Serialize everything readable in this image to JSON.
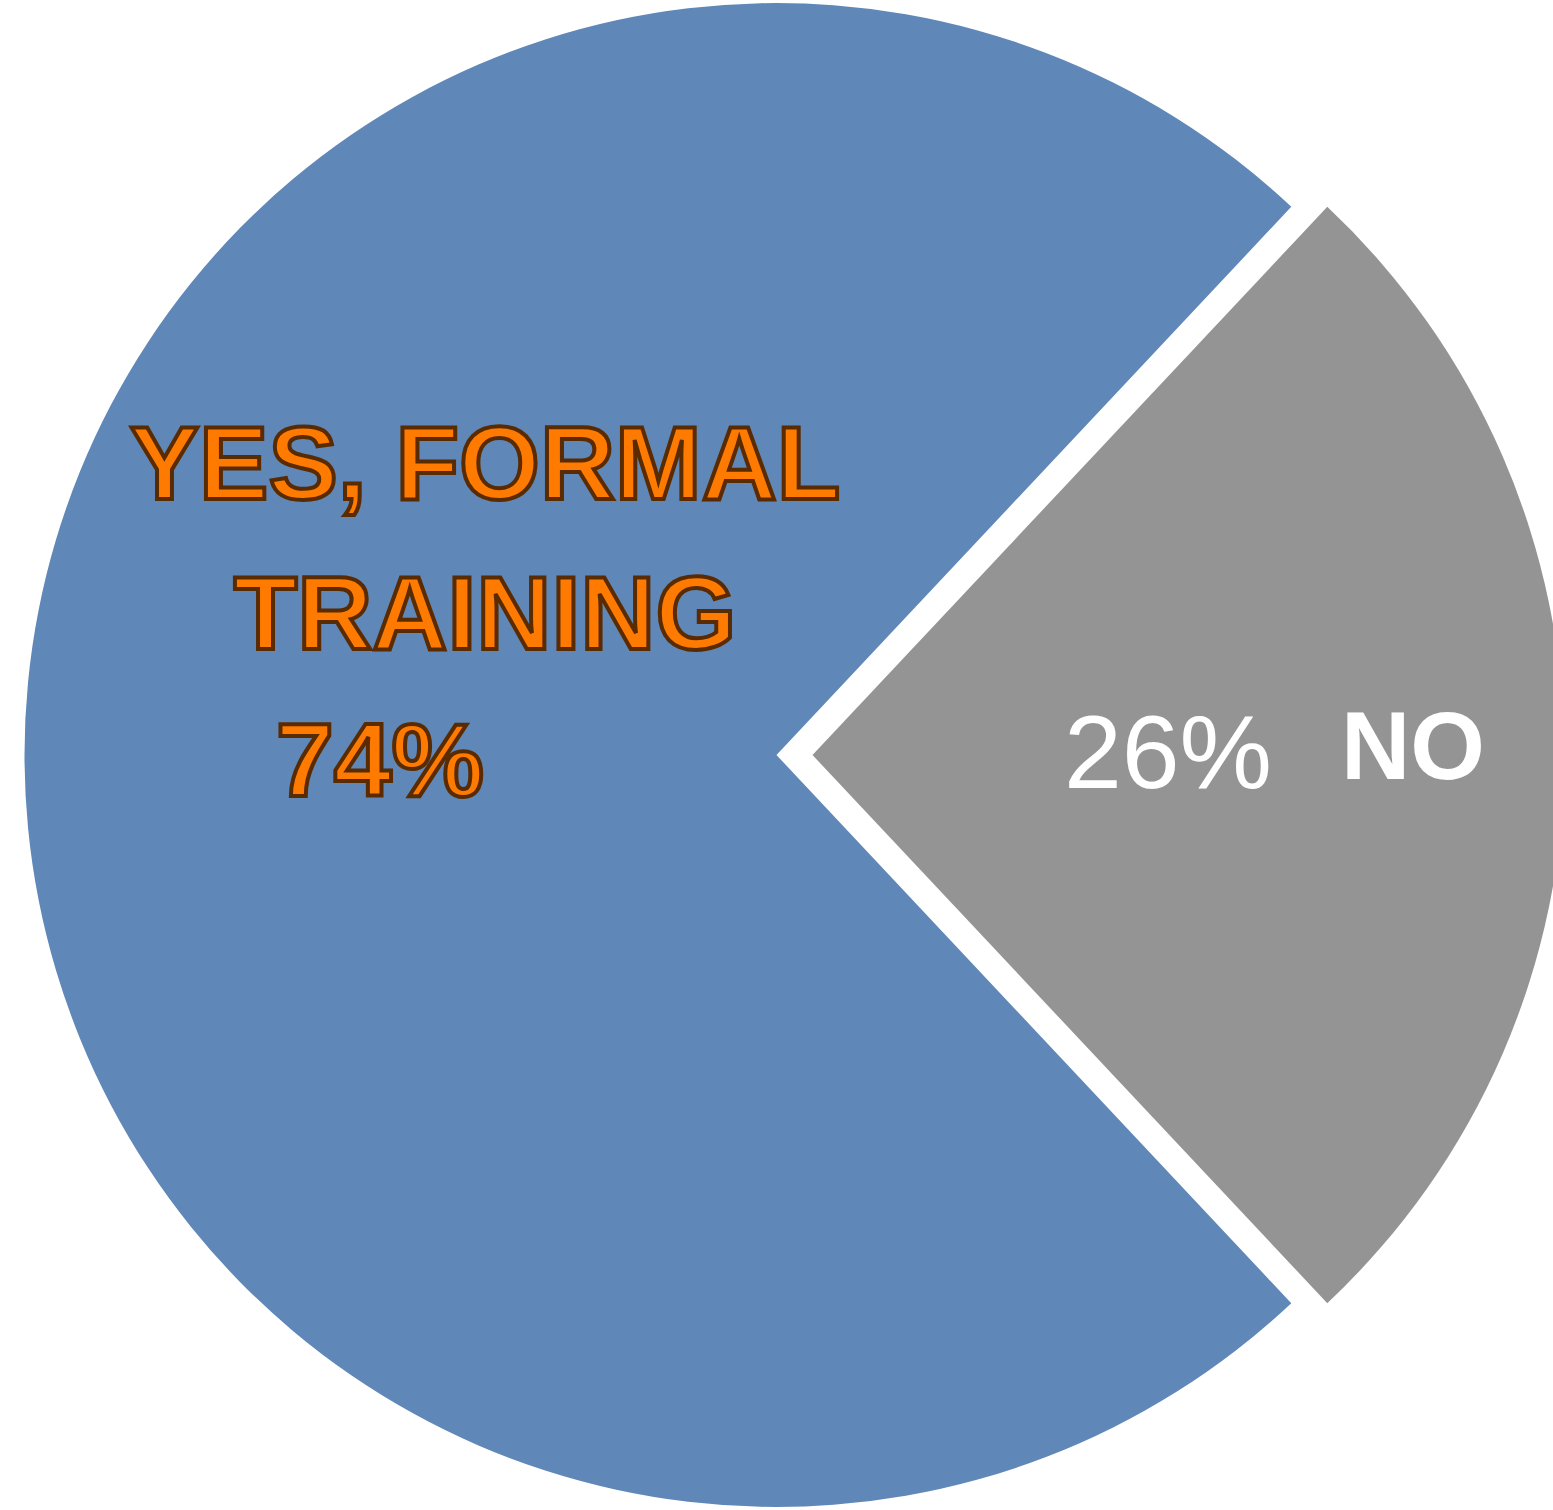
{
  "chart_data": {
    "type": "pie",
    "categories": [
      "YES, FORMAL TRAINING",
      "NO"
    ],
    "values": [
      74,
      26
    ],
    "colors": [
      "#5f87b8",
      "#949494"
    ],
    "value_labels": [
      "74%",
      "26%"
    ]
  }
}
